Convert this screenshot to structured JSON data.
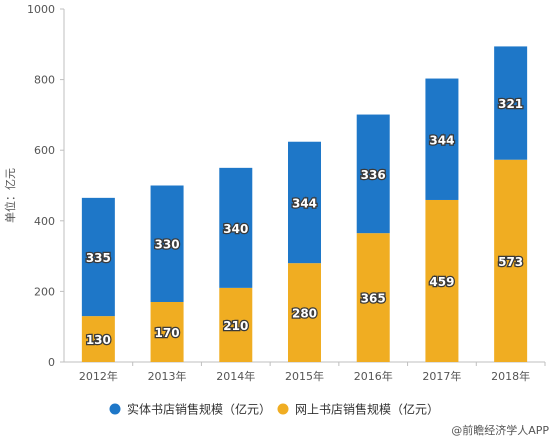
{
  "chart_data": {
    "type": "bar",
    "stacked": true,
    "categories": [
      "2012年",
      "2013年",
      "2014年",
      "2015年",
      "2016年",
      "2017年",
      "2018年"
    ],
    "series": [
      {
        "name": "网上书店销售规模（亿元）",
        "values": [
          130,
          170,
          210,
          280,
          365,
          459,
          573
        ],
        "color": "#f0ad22"
      },
      {
        "name": "实体书店销售规模（亿元）",
        "values": [
          335,
          330,
          340,
          344,
          336,
          344,
          321
        ],
        "color": "#1e77c8"
      }
    ],
    "ylabel": "单位：亿元",
    "ylim": [
      0,
      1000
    ],
    "yticks": [
      0,
      200,
      400,
      600,
      800,
      1000
    ],
    "grid": false,
    "legend_position": "bottom",
    "legend_order": [
      1,
      0
    ]
  },
  "watermark": {
    "text": "@前瞻经济学人APP"
  }
}
